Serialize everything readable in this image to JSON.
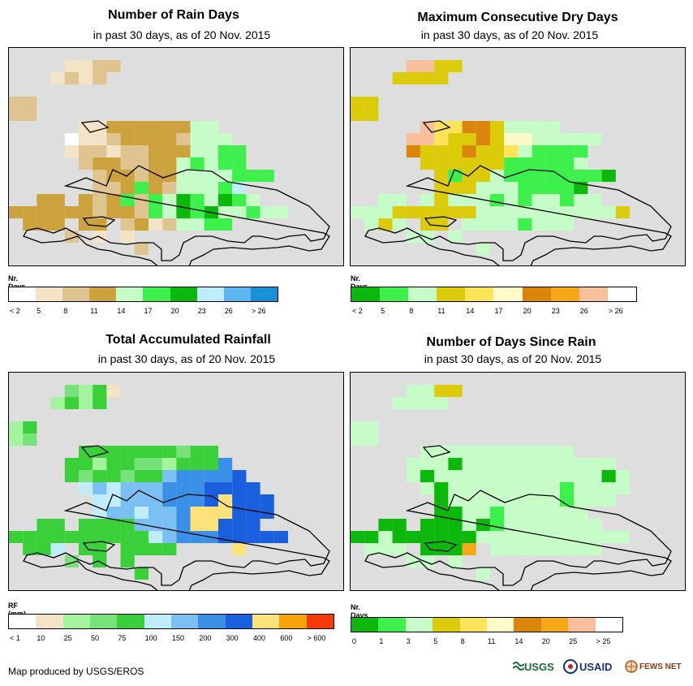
{
  "panels": [
    {
      "title": "Number of Rain Days",
      "subtitle": "in past 30 days, as of 20 Nov. 2015",
      "legend_title": "Nr. Days",
      "legend_colors": [
        "#ffffff",
        "#f5e3c7",
        "#e0c490",
        "#cba23b",
        "#c6fcc8",
        "#3ef04c",
        "#0bb80b",
        "#bfeefa",
        "#5db5f2",
        "#1a90d8"
      ],
      "legend_labels": [
        "< 2",
        "5",
        "8",
        "11",
        "14",
        "17",
        "20",
        "23",
        "26",
        "> 26"
      ],
      "grid_palette": [
        "#f5e3c7",
        "#e0c490",
        "#cba23b",
        "#c6fcc8",
        "#3ef04c",
        "#0bb80b",
        "#bfeefa",
        "#5db5f2",
        "#ffffff"
      ],
      "grid": [
        "........................",
        "....0011................",
        "...0101.................",
        ".......................",
        "11.......................",
        "11......................",
        ".....0022222233.........",
        "....800122221333.........",
        "....0110112223344........",
        ".....122112234344........",
        "......1221223333444......",
        "......11242133346.......",
        "..22.2124143543543.......",
        "22222212214354533433.....",
        ".222.22.12013344.......",
        "....1.0.0...............",
        ".........1..............",
        "........................"
      ]
    },
    {
      "title": "Maximum Consecutive Dry Days",
      "subtitle": "in past 30 days, as of 20 Nov. 2015",
      "legend_title": "Nr. Days",
      "legend_colors": [
        "#0bb80b",
        "#3ef04c",
        "#c6fcc8",
        "#dccb0a",
        "#fce45a",
        "#fffac8",
        "#db860a",
        "#f7a818",
        "#f8c09a",
        "#ffffff"
      ],
      "legend_labels": [
        "< 2",
        "5",
        "8",
        "11",
        "14",
        "17",
        "20",
        "23",
        "26",
        "> 26"
      ],
      "grid_palette": [
        "#0bb80b",
        "#3ef04c",
        "#c6fcc8",
        "#dccb0a",
        "#fce45a",
        "#fffac8",
        "#db860a",
        "#f7a818",
        "#f8c09a"
      ],
      "grid": [
        "........................",
        "....8833................",
        "...3333.................",
        ".......................",
        "33......................",
        "33......................",
        ".....8446632222.........",
        "....88433635522222......",
        "....6333633421111.......",
        ".....333333111112.......",
        "......3133211111110......",
        "......33322211110.......",
        "..22.2322212122122.......",
        "22233333322222222223.....",
        ".232.33.22221222.......",
        "....22.2................",
        ".........2..............",
        "........................"
      ]
    },
    {
      "title": "Total Accumulated Rainfall",
      "subtitle": "in past 30 days, as of 20 Nov. 2015",
      "legend_title": "RF (mm)",
      "legend_colors": [
        "#ffffff",
        "#f5e3c7",
        "#a4f49e",
        "#78e27a",
        "#3ad03a",
        "#bfeefa",
        "#7ac0f5",
        "#3a90e6",
        "#1a60de",
        "#fde27a",
        "#f7a30a",
        "#f53b0a"
      ],
      "legend_labels": [
        "< 1",
        "10",
        "25",
        "50",
        "75",
        "100",
        "150",
        "200",
        "300",
        "400",
        "600",
        "> 600"
      ],
      "grid_palette": [
        "#3ad03a",
        "#78e27a",
        "#a4f49e",
        "#bfeefa",
        "#7ac0f5",
        "#3a90e6",
        "#1a60de",
        "#fde27a",
        "#f5e3c7"
      ],
      "grid": [
        "........................",
        "....1208................",
        "...2020.................",
        ".......................",
        "20......................",
        "21......................",
        ".....0000000100.........",
        "....002001120005........",
        "....0100100455556........",
        ".....3434445556666.......",
        "......3344455567666......",
        "......3443445777666.....",
        "..00.0000444577666.......",
        "00000000003455566666.....",
        ".003.00.0000....7......",
        "....1.0.0...............",
        ".........0..............",
        "........................"
      ]
    },
    {
      "title": "Number of Days Since Rain",
      "subtitle": "in past 30 days, as of 20 Nov. 2015",
      "legend_title": "Nr. Days",
      "legend_colors": [
        "#0bb80b",
        "#3ef04c",
        "#c6fcc8",
        "#dccb0a",
        "#fce45a",
        "#fffac8",
        "#db860a",
        "#f7a818",
        "#f8c09a",
        "#ffffff"
      ],
      "legend_labels": [
        "0",
        "1",
        "3",
        "5",
        "8",
        "11",
        "14",
        "20",
        "25",
        "> 25"
      ],
      "grid_palette": [
        "#0bb80b",
        "#3ef04c",
        "#c6fcc8",
        "#f7a818",
        "#dccb0a"
      ],
      "grid": [
        "........................",
        "....2244................",
        "...2222.................",
        ".......................",
        "22......................",
        "22......................",
        ".....22222222222.........",
        "....222022222222222.....",
        "....2022222222222202.....",
        ".....202222222212222.....",
        "......0222222221222......",
        "......00221222222.......",
        "..00.0002012222222.......",
        "00200000022222222222.....",
        ".222.0003.22222222.......",
        "....22.2................",
        ".........2..............",
        "........................"
      ]
    }
  ],
  "footer": "Map produced by USGS/EROS",
  "logos": {
    "usgs": "USGS",
    "usaid": "USAID",
    "fewsnet": "FEWS NET"
  }
}
